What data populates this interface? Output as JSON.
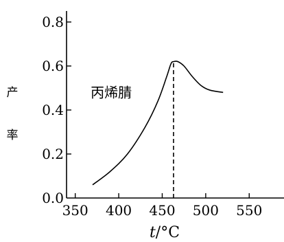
{
  "chart_data": {
    "type": "line",
    "title": "",
    "xlabel": "t/°C",
    "ylabel": "产率",
    "xlim": [
      340,
      590
    ],
    "ylim": [
      0,
      0.85
    ],
    "x_ticks": [
      350,
      400,
      450,
      500,
      550
    ],
    "y_ticks": [
      0.2,
      0.4,
      0.6,
      0.8
    ],
    "y_tick_labels": [
      "0.2",
      "0.4",
      "0.6",
      "0.8"
    ],
    "y_origin_label": "0.0",
    "grid": false,
    "series": [
      {
        "name": "",
        "x": [
          370,
          390,
          410,
          430,
          445,
          455,
          460,
          463,
          468,
          475,
          485,
          495,
          505,
          520
        ],
        "y": [
          0.06,
          0.12,
          0.2,
          0.32,
          0.44,
          0.55,
          0.61,
          0.62,
          0.62,
          0.6,
          0.55,
          0.51,
          0.49,
          0.48
        ]
      }
    ],
    "annotations": [
      {
        "text": "丙烯腈",
        "x": 415,
        "y": 0.48
      }
    ],
    "reference_line": {
      "x": 463,
      "from_y": 0,
      "to_y": 0.62,
      "style": "dashed"
    },
    "colors": {
      "line": "#000000",
      "axis": "#000000"
    }
  }
}
